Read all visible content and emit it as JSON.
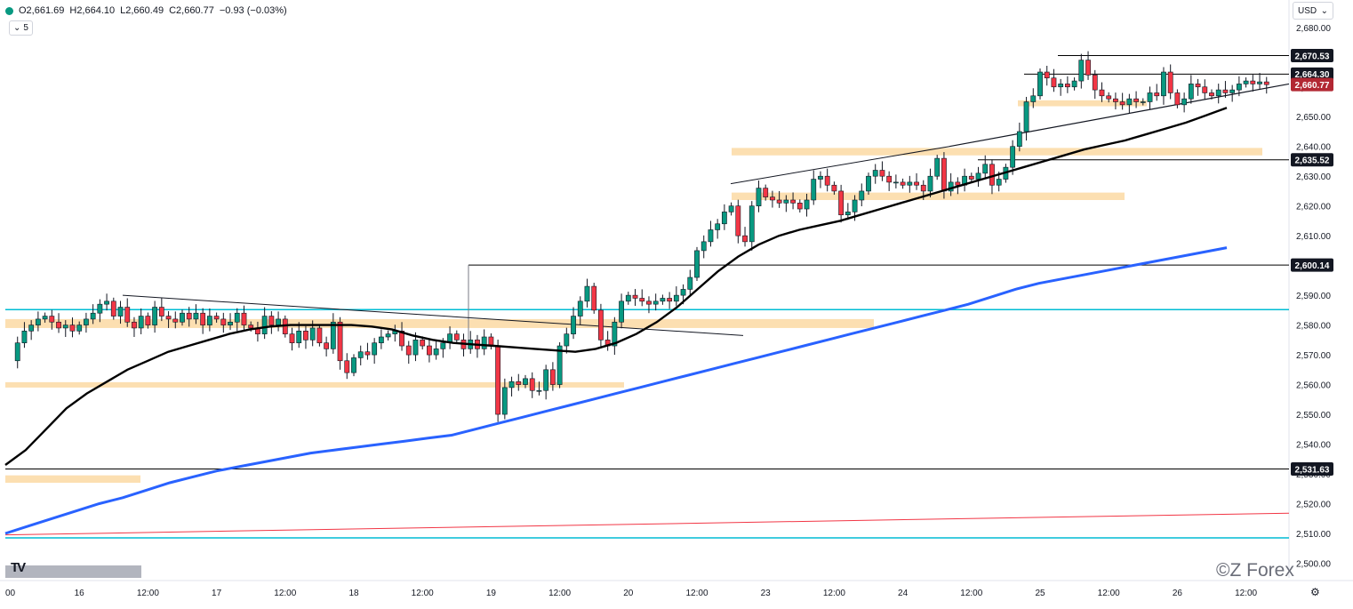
{
  "header": {
    "open": "O2,661.69",
    "high": "H2,664.10",
    "low": "L2,660.49",
    "close": "C2,660.77",
    "change": "−0.93 (−0.03%)",
    "indicator_count": "5",
    "currency": "USD"
  },
  "watermark": {
    "logo": "TV",
    "brand": "©Z Forex"
  },
  "colors": {
    "up": "#089981",
    "down": "#f23645",
    "ema_short": "#000000",
    "ema_long": "#2962ff",
    "zone": "#fbd9a3",
    "cyan": "#00bcd4",
    "red_line": "#f23645",
    "current": "#b22833"
  },
  "chart_data": {
    "type": "candlestick",
    "x_labels": [
      {
        "i": 0,
        "label": "00"
      },
      {
        "i": 10,
        "label": "16"
      },
      {
        "i": 20,
        "label": "12:00"
      },
      {
        "i": 30,
        "label": "17"
      },
      {
        "i": 40,
        "label": "12:00"
      },
      {
        "i": 50,
        "label": "18"
      },
      {
        "i": 60,
        "label": "12:00"
      },
      {
        "i": 70,
        "label": "19"
      },
      {
        "i": 80,
        "label": "12:00"
      },
      {
        "i": 90,
        "label": "20"
      },
      {
        "i": 100,
        "label": "12:00"
      },
      {
        "i": 110,
        "label": "23"
      },
      {
        "i": 120,
        "label": "12:00"
      },
      {
        "i": 130,
        "label": "24"
      },
      {
        "i": 140,
        "label": "12:00"
      },
      {
        "i": 150,
        "label": "25"
      },
      {
        "i": 160,
        "label": "12:00"
      },
      {
        "i": 170,
        "label": "26"
      },
      {
        "i": 180,
        "label": "12:00"
      }
    ],
    "y_ticks": [
      2500,
      2510,
      2520,
      2530,
      2540,
      2550,
      2560,
      2570,
      2580,
      2590,
      2600,
      2610,
      2620,
      2630,
      2640,
      2650,
      2660,
      2670,
      2680
    ],
    "ylim": [
      2500,
      2685
    ],
    "price_labels": [
      {
        "value": 2670.53,
        "text": "2,670.53",
        "kind": "level"
      },
      {
        "value": 2664.3,
        "text": "2,664.30",
        "kind": "level"
      },
      {
        "value": 2660.77,
        "text": "2,660.77",
        "kind": "current"
      },
      {
        "value": 2635.52,
        "text": "2,635.52",
        "kind": "level"
      },
      {
        "value": 2600.14,
        "text": "2,600.14",
        "kind": "level"
      },
      {
        "value": 2531.63,
        "text": "2,531.63",
        "kind": "level"
      }
    ],
    "close_path": [
      2568,
      2574,
      2578,
      2580,
      2582,
      2583,
      2581,
      2579,
      2580,
      2578,
      2580,
      2582,
      2584,
      2587,
      2588,
      2583,
      2586,
      2581,
      2579,
      2583,
      2580,
      2586,
      2583,
      2582,
      2581,
      2584,
      2582,
      2584,
      2580,
      2583,
      2582,
      2580,
      2581,
      2584,
      2580,
      2579,
      2577,
      2583,
      2580,
      2582,
      2577,
      2574,
      2578,
      2575,
      2579,
      2574,
      2572,
      2581,
      2568,
      2564,
      2569,
      2571,
      2570,
      2574,
      2576,
      2577,
      2578,
      2573,
      2570,
      2575,
      2573,
      2570,
      2572,
      2574,
      2577,
      2575,
      2572,
      2575,
      2572,
      2576,
      2573,
      2550,
      2559,
      2561,
      2560,
      2562,
      2558,
      2558,
      2565,
      2560,
      2573,
      2577,
      2583,
      2588,
      2593,
      2585,
      2575,
      2573,
      2581,
      2588,
      2590,
      2589,
      2588,
      2587,
      2588,
      2589,
      2588,
      2590,
      2592,
      2596,
      2605,
      2608,
      2612,
      2614,
      2618,
      2620,
      2610,
      2608,
      2620,
      2626,
      2623,
      2622,
      2621,
      2622,
      2621,
      2619,
      2622,
      2629,
      2630,
      2627,
      2625,
      2617,
      2618,
      2622,
      2625,
      2630,
      2632,
      2630,
      2628,
      2628,
      2627,
      2628,
      2627,
      2625,
      2630,
      2636,
      2625,
      2628,
      2627,
      2630,
      2629,
      2631,
      2634,
      2627,
      2629,
      2633,
      2640,
      2645,
      2655,
      2657,
      2665,
      2663,
      2660,
      2661,
      2660,
      2662,
      2669,
      2664,
      2659,
      2657,
      2656,
      2655,
      2654,
      2656,
      2655,
      2655,
      2658,
      2657,
      2665,
      2658,
      2654,
      2656,
      2661,
      2660,
      2658,
      2657,
      2659,
      2658,
      2659,
      2661,
      2662,
      2661,
      2661.69,
      2660.77
    ],
    "ema_50": [
      2533,
      2538,
      2545,
      2552,
      2557,
      2561,
      2565,
      2568,
      2571,
      2573,
      2575,
      2577,
      2578.5,
      2579.5,
      2580,
      2580,
      2580,
      2580,
      2579.5,
      2578.5,
      2576.5,
      2575,
      2574,
      2573.5,
      2573,
      2572.5,
      2572,
      2571.5,
      2571,
      2572,
      2574,
      2577,
      2581,
      2586,
      2592,
      2598,
      2603,
      2607,
      2610,
      2612,
      2613.5,
      2615,
      2617,
      2619,
      2621,
      2623,
      2625,
      2627,
      2629,
      2631,
      2633,
      2635,
      2637,
      2639,
      2640.5,
      2642,
      2644,
      2646,
      2648,
      2650.5,
      2653
    ],
    "ema_200": [
      2510,
      2512.5,
      2515,
      2517.5,
      2520,
      2522,
      2524.5,
      2527,
      2529,
      2531,
      2532.5,
      2534,
      2535.5,
      2537,
      2538,
      2539,
      2540,
      2541,
      2542,
      2543,
      2545,
      2547,
      2549,
      2551,
      2553,
      2555,
      2557,
      2559,
      2561,
      2563,
      2565,
      2567,
      2569,
      2571,
      2573,
      2575,
      2577,
      2579,
      2581,
      2583,
      2585,
      2587,
      2589.5,
      2592,
      2594,
      2595.5,
      2597,
      2598.5,
      2600,
      2601.5,
      2603,
      2604.5,
      2606
    ],
    "zones": [
      {
        "from": 6,
        "to": 983,
        "y1": 2579,
        "y2": 2582
      },
      {
        "from": 6,
        "to": 702,
        "y1": 2559,
        "y2": 2560.8
      },
      {
        "from": 6,
        "to": 158,
        "y1": 2527,
        "y2": 2529.5
      },
      {
        "from": 823,
        "to": 1420,
        "y1": 2637,
        "y2": 2639.5
      },
      {
        "from": 823,
        "to": 1265,
        "y1": 2622,
        "y2": 2624.5
      },
      {
        "from": 1145,
        "to": 1290,
        "y1": 2653.5,
        "y2": 2655.5
      }
    ],
    "hlines": [
      {
        "value": 2670.53,
        "from": 1190,
        "color": "#000000",
        "width": 1
      },
      {
        "value": 2664.3,
        "from": 1152,
        "color": "#000000",
        "width": 1
      },
      {
        "value": 2635.52,
        "from": 1100,
        "color": "#000000",
        "width": 1
      },
      {
        "value": 2600.14,
        "from": 527,
        "color": "#000000",
        "width": 1
      },
      {
        "value": 2531.63,
        "from": 6,
        "color": "#000000",
        "width": 1
      },
      {
        "value": 2585.2,
        "from": 6,
        "color": "#00bcd4",
        "width": 1.5
      },
      {
        "value": 2508.5,
        "from": 6,
        "color": "#00bcd4",
        "width": 1.5
      }
    ]
  }
}
